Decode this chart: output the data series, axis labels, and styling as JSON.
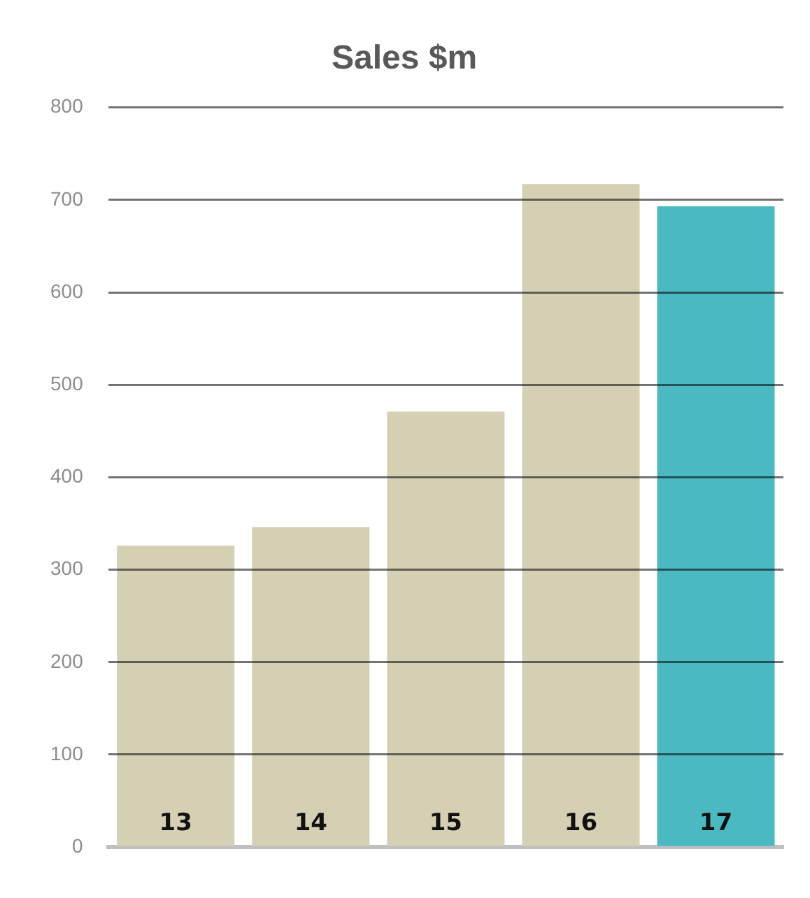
{
  "chart_data": {
    "type": "bar",
    "title": "Sales $m",
    "categories": [
      "13",
      "14",
      "15",
      "16",
      "17"
    ],
    "values": [
      326,
      346,
      471,
      717,
      693
    ],
    "colors": [
      "#d5cfb4",
      "#d5cfb4",
      "#d5cfb4",
      "#d5cfb4",
      "#4ab9c2"
    ],
    "ylim": [
      0,
      800
    ],
    "yticks": [
      0,
      100,
      200,
      300,
      400,
      500,
      600,
      700,
      800
    ],
    "grid": "y",
    "legend": false
  }
}
